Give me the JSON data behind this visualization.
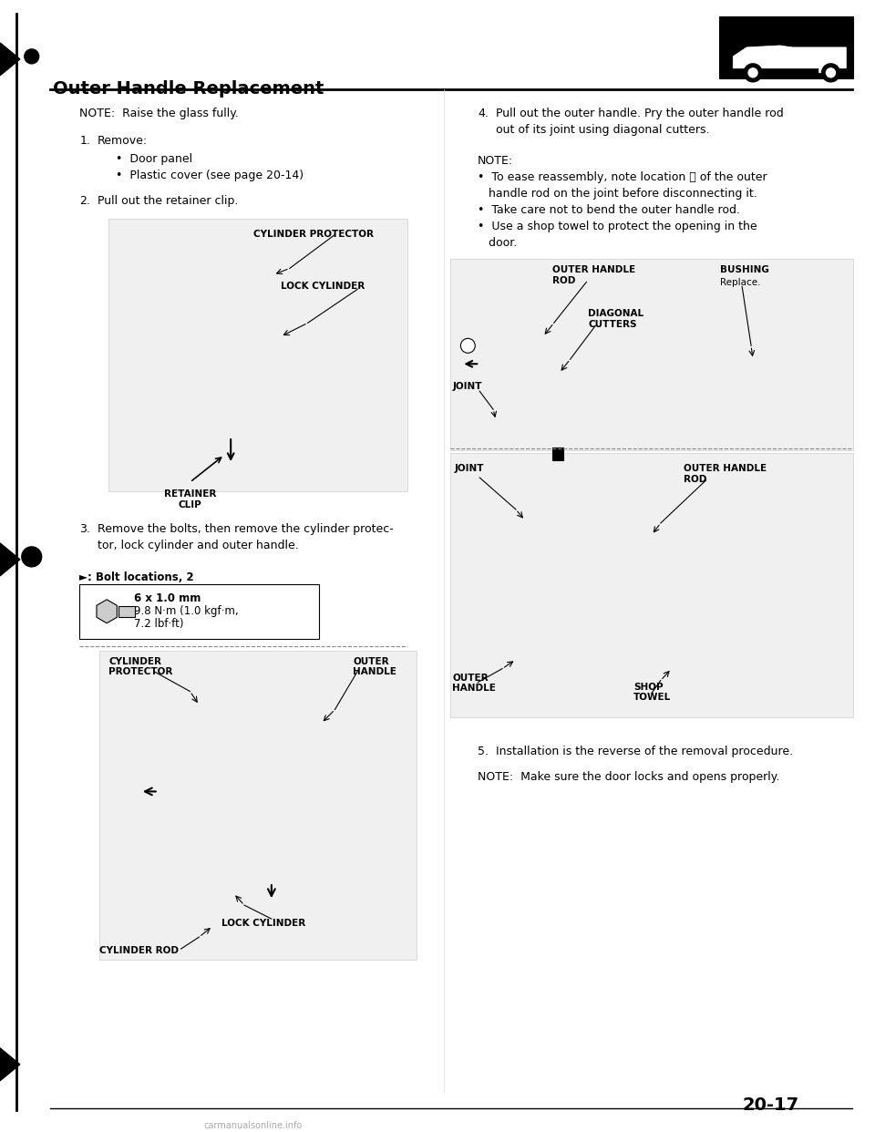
{
  "bg_color": "#ffffff",
  "page_width": 9.6,
  "page_height": 12.42,
  "title": "Outer Handle Replacement",
  "note_raise_glass": "NOTE:  Raise the glass fully.",
  "step1_label": "1.",
  "step1_text": "Remove:",
  "step1_bullet1": "•  Door panel",
  "step1_bullet2": "•  Plastic cover (see page 20-14)",
  "step2_label": "2.",
  "step2_text": "Pull out the retainer clip.",
  "step3_label": "3.",
  "step3_text_1": "Remove the bolts, then remove the cylinder protec-",
  "step3_text_2": "tor, lock cylinder and outer handle.",
  "bolt_label": "►: Bolt locations, 2",
  "bolt_spec_1": "6 x 1.0 mm",
  "bolt_spec_2": "9.8 N·m (1.0 kgf·m,",
  "bolt_spec_3": "7.2 lbf·ft)",
  "step4_label": "4.",
  "step4_text_1": "Pull out the outer handle. Pry the outer handle rod",
  "step4_text_2": "out of its joint using diagonal cutters.",
  "note4_title": "NOTE:",
  "note4_b1_1": "•  To ease reassembly, note location Ⓐ of the outer",
  "note4_b1_2": "   handle rod on the joint before disconnecting it.",
  "note4_b2": "•  Take care not to bend the outer handle rod.",
  "note4_b3_1": "•  Use a shop towel to protect the opening in the",
  "note4_b3_2": "   door.",
  "step5_label": "5.",
  "step5_text": "Installation is the reverse of the removal procedure.",
  "note5_text": "NOTE:  Make sure the door locks and opens properly.",
  "page_num": "20-17",
  "watermark": "carmanualsonline.info",
  "fig1_label_cyl_prot": "CYLINDER PROTECTOR",
  "fig1_label_lock_cyl": "LOCK CYLINDER",
  "fig1_label_ret_clip": "RETAINER\nCLIP",
  "fig3_label_cyl_prot": "CYLINDER\nPROTECTOR",
  "fig3_label_outer_handle": "OUTER\nHANDLE",
  "fig3_label_lock_cyl": "LOCK CYLINDER",
  "fig3_label_cyl_rod": "CYLINDER ROD",
  "fig4a_label_rod": "OUTER HANDLE\nROD",
  "fig4a_label_bushing": "BUSHING",
  "fig4a_label_bushing2": "Replace.",
  "fig4a_label_diag": "DIAGONAL\nCUTTERS",
  "fig4a_label_joint": "JOINT",
  "fig4b_label_joint": "JOINT",
  "fig4b_label_rod": "OUTER HANDLE\nROD",
  "fig4b_label_outer": "OUTER\nHANDLE",
  "fig4b_label_shop": "SHOP\nTOWEL"
}
